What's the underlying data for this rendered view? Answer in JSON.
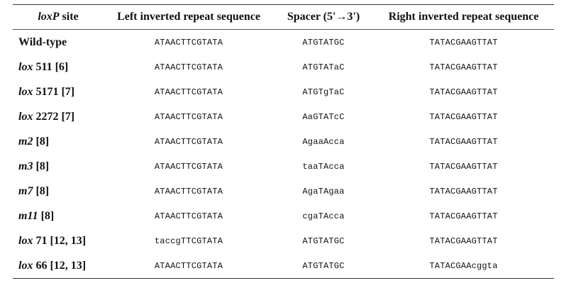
{
  "table": {
    "headers": [
      {
        "italic": "loxP",
        "rest": " site"
      },
      {
        "italic": "",
        "rest": "Left inverted repeat sequence"
      },
      {
        "italic": "",
        "rest": "Spacer (5'→3')"
      },
      {
        "italic": "",
        "rest": "Right inverted repeat sequence"
      }
    ],
    "rows": [
      {
        "site_italic": "",
        "site_rest": "Wild-type",
        "left": "ATAACTTCGTATA",
        "spacer": "ATGTATGC",
        "right": "TATACGAAGTTAT"
      },
      {
        "site_italic": "lox",
        "site_rest": " 511 [6]",
        "left": "ATAACTTCGTATA",
        "spacer": "ATGTATaC",
        "right": "TATACGAAGTTAT"
      },
      {
        "site_italic": "lox",
        "site_rest": " 5171 [7]",
        "left": "ATAACTTCGTATA",
        "spacer": "ATGTgTaC",
        "right": "TATACGAAGTTAT"
      },
      {
        "site_italic": "lox",
        "site_rest": " 2272 [7]",
        "left": "ATAACTTCGTATA",
        "spacer": "AaGTATcC",
        "right": "TATACGAAGTTAT"
      },
      {
        "site_italic": "m2",
        "site_rest": " [8]",
        "left": "ATAACTTCGTATA",
        "spacer": "AgaaAcca",
        "right": "TATACGAAGTTAT"
      },
      {
        "site_italic": "m3",
        "site_rest": " [8]",
        "left": "ATAACTTCGTATA",
        "spacer": "taaTAcca",
        "right": "TATACGAAGTTAT"
      },
      {
        "site_italic": "m7",
        "site_rest": " [8]",
        "left": "ATAACTTCGTATA",
        "spacer": "AgaTAgaa",
        "right": "TATACGAAGTTAT"
      },
      {
        "site_italic": "m11",
        "site_rest": " [8]",
        "left": "ATAACTTCGTATA",
        "spacer": "cgaTAcca",
        "right": "TATACGAAGTTAT"
      },
      {
        "site_italic": "lox",
        "site_rest": " 71 [12, 13]",
        "left": "taccgTTCGTATA",
        "spacer": "ATGTATGC",
        "right": "TATACGAAGTTAT"
      },
      {
        "site_italic": "lox",
        "site_rest": " 66 [12, 13]",
        "left": "ATAACTTCGTATA",
        "spacer": "ATGTATGC",
        "right": "TATACGAAcggta"
      }
    ]
  }
}
